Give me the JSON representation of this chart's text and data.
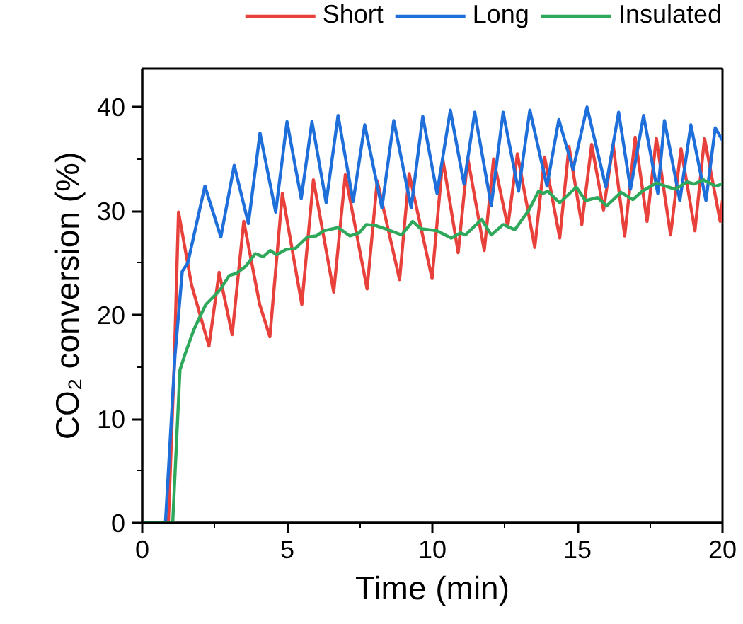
{
  "chart_data": {
    "type": "line",
    "xlabel": "Time (min)",
    "ylabel": "CO₂ conversion (%)",
    "xlim": [
      0,
      20
    ],
    "ylim": [
      0,
      43.7
    ],
    "xticks": [
      0,
      5,
      10,
      15,
      20
    ],
    "yticks": [
      0,
      10,
      20,
      30,
      40
    ],
    "grid": false,
    "legend": "top",
    "marker": "none",
    "line_style": "solid",
    "series": [
      {
        "name": "Short",
        "color": "#e8413c",
        "x": [
          0,
          0.9,
          1.1,
          1.25,
          1.7,
          2.3,
          2.65,
          3.1,
          3.5,
          4.05,
          4.4,
          4.83,
          5.5,
          5.9,
          6.6,
          7.0,
          7.75,
          8.1,
          8.87,
          9.2,
          9.99,
          10.36,
          10.89,
          11.22,
          11.79,
          12.11,
          12.6,
          12.93,
          13.53,
          13.87,
          14.39,
          14.71,
          15.15,
          15.49,
          15.9,
          16.23,
          16.63,
          16.99,
          17.4,
          17.72,
          18.21,
          18.57,
          19.05,
          19.38,
          19.92,
          20
        ],
        "values": [
          0,
          0,
          15,
          29.9,
          22.9,
          17.0,
          24.1,
          18.1,
          29.0,
          21.0,
          17.9,
          31.7,
          21.0,
          33.0,
          22.2,
          33.5,
          22.5,
          32.9,
          23.4,
          33.6,
          23.5,
          35.0,
          26.0,
          35.1,
          26.2,
          35.0,
          28.5,
          35.5,
          26.5,
          35.2,
          27.4,
          36.2,
          28.7,
          36.4,
          30.1,
          36.4,
          27.6,
          37.1,
          29.0,
          37.0,
          27.7,
          36.0,
          28.1,
          37.0,
          29.0,
          31.0
        ]
      },
      {
        "name": "Long",
        "color": "#1f6fdb",
        "x": [
          0,
          0.8,
          1.13,
          1.38,
          1.57,
          2.16,
          2.71,
          3.17,
          3.66,
          4.06,
          4.6,
          4.99,
          5.48,
          5.85,
          6.34,
          6.75,
          7.27,
          7.67,
          8.26,
          8.67,
          9.27,
          9.67,
          10.16,
          10.62,
          11.09,
          11.46,
          12.03,
          12.44,
          12.97,
          13.36,
          13.95,
          14.36,
          14.85,
          15.33,
          15.98,
          16.42,
          16.83,
          17.28,
          17.77,
          18.0,
          18.53,
          18.91,
          19.43,
          19.75,
          20
        ],
        "values": [
          0,
          0,
          16.1,
          24.2,
          25.0,
          32.4,
          27.5,
          34.4,
          28.8,
          37.5,
          29.9,
          38.6,
          31.2,
          38.6,
          30.8,
          39.2,
          30.9,
          38.3,
          30.3,
          38.7,
          30.3,
          39.1,
          31.7,
          39.7,
          32.6,
          39.5,
          30.5,
          39.5,
          31.9,
          39.7,
          32.4,
          38.8,
          34.0,
          40.0,
          32.3,
          39.5,
          32.1,
          39.2,
          31.7,
          38.7,
          31.0,
          38.3,
          31.0,
          38.0,
          36.8
        ]
      },
      {
        "name": "Insulated",
        "color": "#2ea85a",
        "x": [
          0,
          1.05,
          1.3,
          1.46,
          1.78,
          2.19,
          2.68,
          3.0,
          3.24,
          3.57,
          3.9,
          4.17,
          4.41,
          4.63,
          4.96,
          5.28,
          5.69,
          6.0,
          6.26,
          6.75,
          7.16,
          7.48,
          7.72,
          8.05,
          8.37,
          8.94,
          9.32,
          9.6,
          10.16,
          10.65,
          10.97,
          11.14,
          11.7,
          12.03,
          12.44,
          12.84,
          13.33,
          13.66,
          13.82,
          13.98,
          14.39,
          14.96,
          15.28,
          15.69,
          16.01,
          16.5,
          16.91,
          17.23,
          17.72,
          18.13,
          18.37,
          18.78,
          19.02,
          19.35,
          19.75,
          20
        ],
        "values": [
          0,
          0,
          14.7,
          16.1,
          18.6,
          21.0,
          22.4,
          23.8,
          24.0,
          24.7,
          25.9,
          25.6,
          26.2,
          25.8,
          26.3,
          26.4,
          27.5,
          27.6,
          28.1,
          28.4,
          27.6,
          27.9,
          28.7,
          28.6,
          28.3,
          27.7,
          29.0,
          28.3,
          28.1,
          27.4,
          27.9,
          27.7,
          29.2,
          27.7,
          28.7,
          28.2,
          30.1,
          31.9,
          31.7,
          31.9,
          30.8,
          32.3,
          31.0,
          31.3,
          30.5,
          31.8,
          31.1,
          31.9,
          32.7,
          32.3,
          32.1,
          32.8,
          32.6,
          33.0,
          32.4,
          32.6
        ]
      }
    ]
  }
}
